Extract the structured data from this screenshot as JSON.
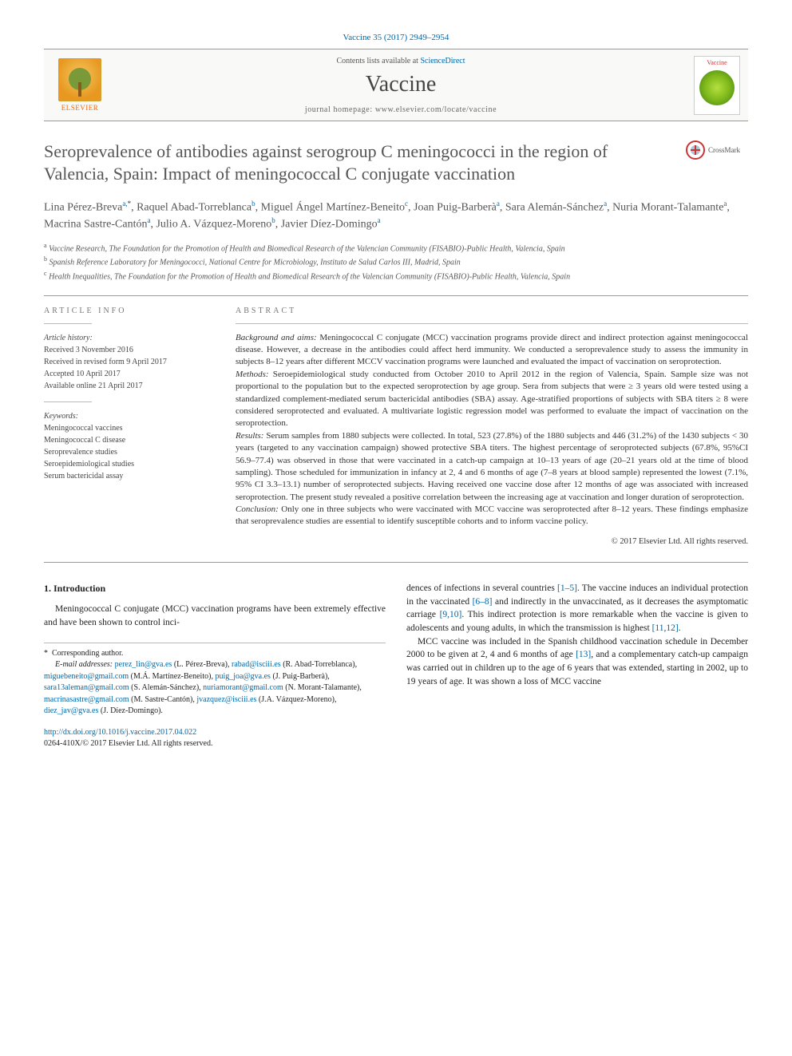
{
  "journal_ref": "Vaccine 35 (2017) 2949–2954",
  "header": {
    "contents_prefix": "Contents lists available at ",
    "contents_link": "ScienceDirect",
    "journal_name": "Vaccine",
    "homepage_prefix": "journal homepage: ",
    "homepage_url": "www.elsevier.com/locate/vaccine",
    "elsevier_label": "ELSEVIER",
    "cover_label": "Vaccine"
  },
  "title": "Seroprevalence of antibodies against serogroup C meningococci in the region of Valencia, Spain: Impact of meningococcal C conjugate vaccination",
  "crossmark": "CrossMark",
  "authors_html": "Lina Pérez-Breva<sup>a,</sup><sup class='star'>*</sup>, Raquel Abad-Torreblanca<sup>b</sup>, Miguel Ángel Martínez-Beneito<sup>c</sup>, Joan Puig-Barberà<sup>a</sup>, Sara Alemán-Sánchez<sup>a</sup>, Nuria Morant-Talamante<sup>a</sup>, Macrina Sastre-Cantón<sup>a</sup>, Julio A. Vázquez-Moreno<sup>b</sup>, Javier Díez-Domingo<sup>a</sup>",
  "affiliations": [
    {
      "sup": "a",
      "text": "Vaccine Research, The Foundation for the Promotion of Health and Biomedical Research of the Valencian Community (FISABIO)-Public Health, Valencia, Spain"
    },
    {
      "sup": "b",
      "text": "Spanish Reference Laboratory for Meningococci, National Centre for Microbiology, Instituto de Salud Carlos III, Madrid, Spain"
    },
    {
      "sup": "c",
      "text": "Health Inequalities, The Foundation for the Promotion of Health and Biomedical Research of the Valencian Community (FISABIO)-Public Health, Valencia, Spain"
    }
  ],
  "info": {
    "heading": "ARTICLE INFO",
    "history_label": "Article history:",
    "history": [
      "Received 3 November 2016",
      "Received in revised form 9 April 2017",
      "Accepted 10 April 2017",
      "Available online 21 April 2017"
    ],
    "keywords_label": "Keywords:",
    "keywords": [
      "Meningococcal vaccines",
      "Meningococcal C disease",
      "Seroprevalence studies",
      "Seroepidemiological studies",
      "Serum bactericidal assay"
    ]
  },
  "abstract": {
    "heading": "ABSTRACT",
    "bg_label": "Background and aims:",
    "bg": "Meningococcal C conjugate (MCC) vaccination programs provide direct and indirect protection against meningococcal disease. However, a decrease in the antibodies could affect herd immunity. We conducted a seroprevalence study to assess the immunity in subjects 8–12 years after different MCCV vaccination programs were launched and evaluated the impact of vaccination on seroprotection.",
    "methods_label": "Methods:",
    "methods": "Seroepidemiological study conducted from October 2010 to April 2012 in the region of Valencia, Spain. Sample size was not proportional to the population but to the expected seroprotection by age group. Sera from subjects that were ≥ 3 years old were tested using a standardized complement-mediated serum bactericidal antibodies (SBA) assay. Age-stratified proportions of subjects with SBA titers ≥ 8 were considered seroprotected and evaluated. A multivariate logistic regression model was performed to evaluate the impact of vaccination on the seroprotection.",
    "results_label": "Results:",
    "results": "Serum samples from 1880 subjects were collected. In total, 523 (27.8%) of the 1880 subjects and 446 (31.2%) of the 1430 subjects < 30 years (targeted to any vaccination campaign) showed protective SBA titers. The highest percentage of seroprotected subjects (67.8%, 95%CI 56.9–77.4) was observed in those that were vaccinated in a catch-up campaign at 10–13 years of age (20–21 years old at the time of blood sampling). Those scheduled for immunization in infancy at 2, 4 and 6 months of age (7–8 years at blood sample) represented the lowest (7.1%, 95% CI 3.3–13.1) number of seroprotected subjects. Having received one vaccine dose after 12 months of age was associated with increased seroprotection. The present study revealed a positive correlation between the increasing age at vaccination and longer duration of seroprotection.",
    "conclusion_label": "Conclusion:",
    "conclusion": "Only one in three subjects who were vaccinated with MCC vaccine was seroprotected after 8–12 years. These findings emphasize that seroprevalence studies are essential to identify susceptible cohorts and to inform vaccine policy.",
    "copyright": "© 2017 Elsevier Ltd. All rights reserved."
  },
  "intro": {
    "heading": "1. Introduction",
    "para1": "Meningococcal C conjugate (MCC) vaccination programs have been extremely effective and have been shown to control inci-",
    "para2_a": "dences of infections in several countries ",
    "ref1": "[1–5]",
    "para2_b": ". The vaccine induces an individual protection in the vaccinated ",
    "ref2": "[6–8]",
    "para2_c": " and indirectly in the unvaccinated, as it decreases the asymptomatic carriage ",
    "ref3": "[9,10]",
    "para2_d": ". This indirect protection is more remarkable when the vaccine is given to adolescents and young adults, in which the transmission is highest ",
    "ref4": "[11,12]",
    "para2_e": ".",
    "para3_a": "MCC vaccine was included in the Spanish childhood vaccination schedule in December 2000 to be given at 2, 4 and 6 months of age ",
    "ref5": "[13]",
    "para3_b": ", and a complementary catch-up campaign was carried out in children up to the age of 6 years that was extended, starting in 2002, up to 19 years of age. It was shown a loss of MCC vaccine"
  },
  "footnotes": {
    "corr": "Corresponding author.",
    "emails_label": "E-mail addresses:",
    "emails": [
      {
        "addr": "perez_lin@gva.es",
        "who": "(L. Pérez-Breva),"
      },
      {
        "addr": "rabad@isciii.es",
        "who": "(R. Abad-Torreblanca),"
      },
      {
        "addr": "miguebeneito@gmail.com",
        "who": "(M.Á. Martínez-Beneito),"
      },
      {
        "addr": "puig_joa@gva.es",
        "who": "(J. Puig-Barberà),"
      },
      {
        "addr": "sara13aleman@gmail.com",
        "who": "(S. Alemán-Sánchez),"
      },
      {
        "addr": "nuriamorant@gmail.com",
        "who": "(N. Morant-Talamante),"
      },
      {
        "addr": "macrinasastre@gmail.com",
        "who": "(M. Sastre-Cantón),"
      },
      {
        "addr": "jvazquez@isciii.es",
        "who": "(J.A. Vázquez-Moreno),"
      },
      {
        "addr": "diez_jav@gva.es",
        "who": "(J. Díez-Domingo)."
      }
    ]
  },
  "doi": {
    "url": "http://dx.doi.org/10.1016/j.vaccine.2017.04.022",
    "issn": "0264-410X/© 2017 Elsevier Ltd. All rights reserved."
  },
  "colors": {
    "link": "#0066a6",
    "text": "#333333",
    "muted": "#666666",
    "rule": "#999999"
  }
}
